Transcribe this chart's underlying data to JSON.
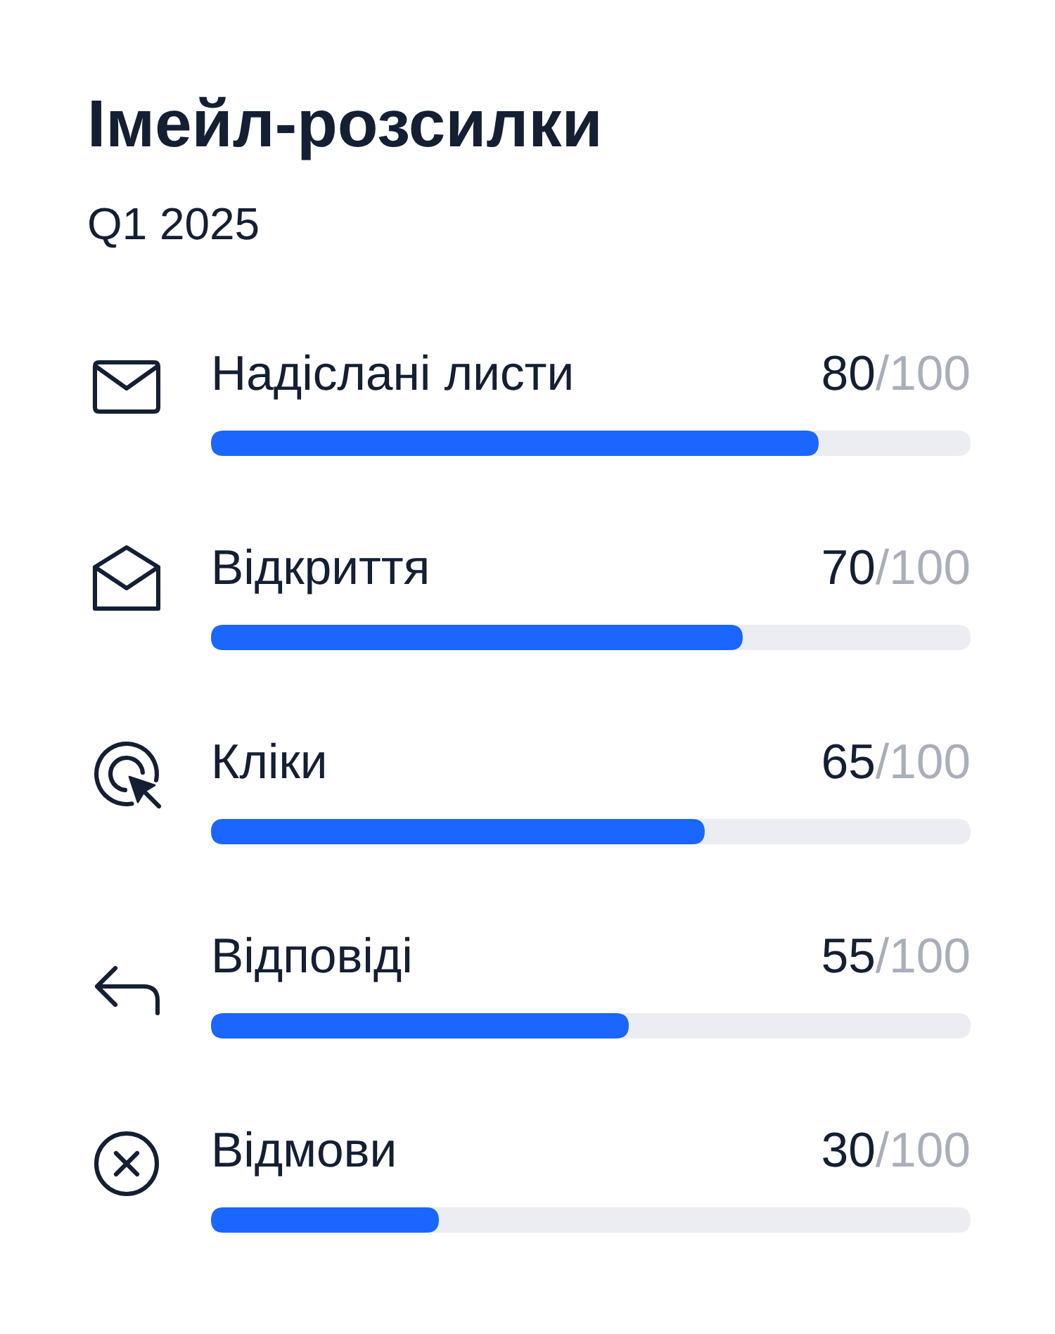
{
  "chart_data": {
    "type": "bar",
    "orientation": "horizontal",
    "title": "Імейл-розсилки",
    "subtitle": "Q1 2025",
    "categories": [
      "Надіслані листи",
      "Відкриття",
      "Кліки",
      "Відповіді",
      "Відмови"
    ],
    "values": [
      80,
      70,
      65,
      55,
      30
    ],
    "color": "#1a66ff",
    "xlim": [
      0,
      100
    ],
    "value_labels": [
      "80/100",
      "70/100",
      "65/100",
      "55/100",
      "30/100"
    ]
  }
}
